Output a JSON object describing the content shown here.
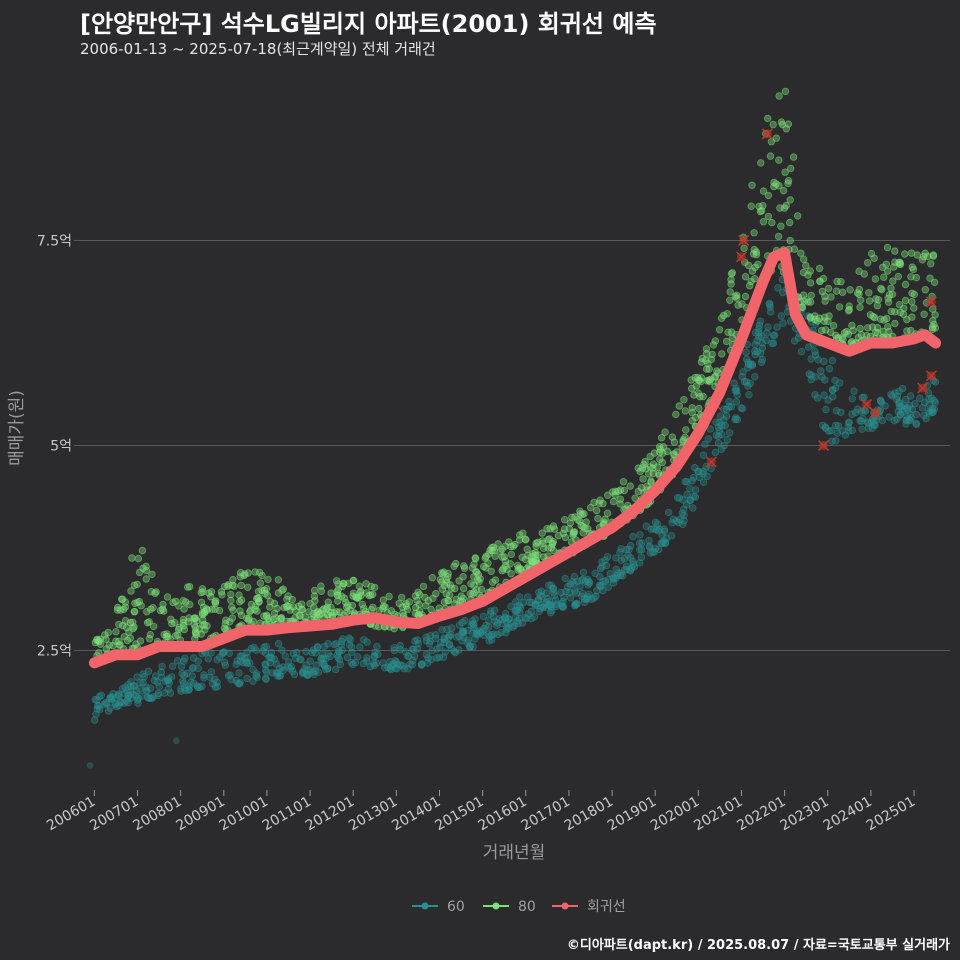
{
  "title": "[안양만안구] 석수LG빌리지 아파트(2001) 회귀선 예측",
  "subtitle": "2006-01-13 ~ 2025-07-18(최근계약일) 전체 거래건",
  "credit": "©디아파트(dapt.kr) / 2025.08.07 / 자료=국토교통부 실거래가",
  "colors": {
    "background": "#2b2b2d",
    "s60": "#2a8f8f",
    "s80": "#7de07a",
    "regression": "#f0646a",
    "grid": "#5a5a5a",
    "outlier": "#c0392b"
  },
  "chart_data": {
    "type": "scatter",
    "xlabel": "거래년월",
    "ylabel": "매매가(원)",
    "x_ticks": [
      "200601",
      "200701",
      "200801",
      "200901",
      "201001",
      "201101",
      "201201",
      "201301",
      "201401",
      "201501",
      "201601",
      "201701",
      "201801",
      "201901",
      "202001",
      "202101",
      "202201",
      "202301",
      "202401",
      "202501"
    ],
    "x_range": [
      "2005-09",
      "2025-11"
    ],
    "y_ticks": [
      "2.5억",
      "5억",
      "7.5억"
    ],
    "y_tick_values": [
      2.5,
      5,
      7.5
    ],
    "y_range": [
      0.8,
      9.7
    ],
    "y_unit": "억",
    "grid": "horizontal",
    "legend_position": "bottom",
    "legend": [
      "60",
      "80",
      "회귀선"
    ],
    "series": [
      {
        "name": "60",
        "band": {
          "x": [
            "2006-01",
            "2006-07",
            "2007-01",
            "2007-07",
            "2008-01",
            "2008-07",
            "2009-01",
            "2009-07",
            "2010-01",
            "2010-07",
            "2011-01",
            "2011-07",
            "2012-01",
            "2012-07",
            "2013-01",
            "2013-07",
            "2014-01",
            "2014-07",
            "2015-01",
            "2015-07",
            "2016-01",
            "2016-07",
            "2017-01",
            "2017-07",
            "2018-01",
            "2018-07",
            "2019-01",
            "2019-07",
            "2020-01",
            "2020-07",
            "2021-01",
            "2021-07",
            "2022-01",
            "2022-07",
            "2023-01",
            "2023-07",
            "2024-01",
            "2024-07",
            "2025-01",
            "2025-07"
          ],
          "lo": [
            1.65,
            1.8,
            1.85,
            1.95,
            2.0,
            2.05,
            2.05,
            2.1,
            2.15,
            2.2,
            2.2,
            2.25,
            2.3,
            2.3,
            2.25,
            2.3,
            2.4,
            2.5,
            2.55,
            2.7,
            2.85,
            2.95,
            3.0,
            3.1,
            3.3,
            3.5,
            3.65,
            3.9,
            4.3,
            4.9,
            5.4,
            6.0,
            6.5,
            6.0,
            5.0,
            5.1,
            5.2,
            5.3,
            5.2,
            5.4
          ],
          "hi": [
            1.95,
            2.0,
            2.2,
            2.3,
            2.4,
            2.5,
            2.5,
            2.55,
            2.6,
            2.6,
            2.55,
            2.6,
            2.7,
            2.6,
            2.55,
            2.65,
            2.75,
            2.85,
            2.95,
            3.05,
            3.2,
            3.3,
            3.4,
            3.5,
            3.7,
            3.9,
            4.1,
            4.4,
            4.9,
            5.5,
            6.1,
            6.6,
            7.1,
            6.8,
            6.1,
            5.8,
            5.6,
            5.7,
            5.7,
            5.9
          ]
        },
        "outliers": [
          [
            2005.9,
            1.1
          ],
          [
            2007.9,
            1.4
          ]
        ],
        "marked": [
          [
            2020.3,
            4.8
          ],
          [
            2020.4,
            5.5
          ],
          [
            2022.9,
            5.0
          ],
          [
            2023.9,
            5.5
          ],
          [
            2024.1,
            5.4
          ],
          [
            2025.2,
            5.7
          ],
          [
            2025.4,
            5.85
          ]
        ]
      },
      {
        "name": "80",
        "band": {
          "x": [
            "2006-01",
            "2006-07",
            "2007-01",
            "2007-07",
            "2008-01",
            "2008-07",
            "2009-01",
            "2009-07",
            "2010-01",
            "2010-07",
            "2011-01",
            "2011-07",
            "2012-01",
            "2012-07",
            "2013-01",
            "2013-07",
            "2014-01",
            "2014-07",
            "2015-01",
            "2015-07",
            "2016-01",
            "2016-07",
            "2017-01",
            "2017-07",
            "2018-01",
            "2018-07",
            "2019-01",
            "2019-07",
            "2020-01",
            "2020-07",
            "2021-01",
            "2021-07",
            "2022-01",
            "2022-07",
            "2023-01",
            "2023-07",
            "2024-01",
            "2024-07",
            "2025-01",
            "2025-07"
          ],
          "lo": [
            2.3,
            2.4,
            2.5,
            2.5,
            2.5,
            2.6,
            2.7,
            2.8,
            2.8,
            2.8,
            2.8,
            2.9,
            2.9,
            2.8,
            2.75,
            2.85,
            2.95,
            3.05,
            3.15,
            3.3,
            3.45,
            3.55,
            3.65,
            3.8,
            3.95,
            4.15,
            4.35,
            4.7,
            5.2,
            5.8,
            6.5,
            7.2,
            7.0,
            6.6,
            6.3,
            6.2,
            6.3,
            6.3,
            6.3,
            6.4
          ],
          "hi": [
            2.6,
            3.0,
            3.9,
            3.2,
            3.3,
            3.3,
            3.3,
            3.5,
            3.5,
            3.3,
            3.2,
            3.4,
            3.4,
            3.3,
            3.1,
            3.3,
            3.45,
            3.6,
            3.7,
            3.85,
            3.95,
            4.0,
            4.15,
            4.3,
            4.45,
            4.7,
            5.0,
            5.5,
            6.1,
            6.6,
            7.6,
            8.9,
            9.4,
            7.5,
            7.0,
            7.0,
            7.4,
            7.5,
            7.4,
            7.5
          ]
        },
        "marked": [
          [
            2021.05,
            7.5
          ],
          [
            2021.0,
            7.3
          ],
          [
            2021.6,
            8.8
          ],
          [
            2025.4,
            6.75
          ]
        ]
      },
      {
        "name": "회귀선",
        "x": [
          "2006-01",
          "2006-07",
          "2007-01",
          "2007-07",
          "2008-01",
          "2008-07",
          "2009-01",
          "2009-07",
          "2010-01",
          "2010-07",
          "2011-01",
          "2011-07",
          "2012-01",
          "2012-07",
          "2013-01",
          "2013-07",
          "2014-01",
          "2014-07",
          "2015-01",
          "2015-07",
          "2016-01",
          "2016-07",
          "2017-01",
          "2017-07",
          "2018-01",
          "2018-07",
          "2019-01",
          "2019-07",
          "2020-01",
          "2020-07",
          "2021-01",
          "2021-07",
          "2021-10",
          "2022-01",
          "2022-04",
          "2022-07",
          "2023-01",
          "2023-07",
          "2024-01",
          "2024-07",
          "2025-01",
          "2025-04",
          "2025-07"
        ],
        "y": [
          2.35,
          2.45,
          2.45,
          2.55,
          2.55,
          2.55,
          2.65,
          2.75,
          2.75,
          2.78,
          2.8,
          2.82,
          2.87,
          2.9,
          2.85,
          2.83,
          2.92,
          3.0,
          3.1,
          3.25,
          3.4,
          3.55,
          3.7,
          3.85,
          4.0,
          4.2,
          4.45,
          4.75,
          5.15,
          5.65,
          6.3,
          7.0,
          7.3,
          7.35,
          6.6,
          6.35,
          6.25,
          6.15,
          6.25,
          6.25,
          6.3,
          6.35,
          6.25
        ]
      }
    ]
  }
}
